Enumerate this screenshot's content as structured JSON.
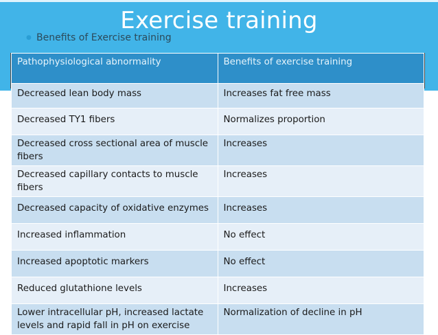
{
  "slide": {
    "title": "Exercise training",
    "subtitle": "Benefits of Exercise training",
    "bullet_icon": "circle-bullet"
  },
  "table": {
    "headers": [
      "Pathophysiological abnormality",
      "Benefits of exercise training"
    ],
    "rows": [
      [
        "Decreased lean body mass",
        "Increases fat free mass"
      ],
      [
        "Decreased TY1 fibers",
        "Normalizes proportion"
      ],
      [
        "Decreased cross sectional area of muscle fibers",
        "Increases"
      ],
      [
        "Decreased capillary contacts to muscle fibers",
        "Increases"
      ],
      [
        "Decreased capacity of oxidative enzymes",
        "Increases"
      ],
      [
        "Increased inflammation",
        "No effect"
      ],
      [
        "Increased apoptotic markers",
        "No effect"
      ],
      [
        "Reduced glutathione levels",
        "Increases"
      ],
      [
        "Lower intracellular pH, increased lactate levels and rapid fall in pH on exercise",
        "Normalization of decline in pH"
      ]
    ]
  },
  "colors": {
    "header_band": "#41b4e8",
    "table_header": "#2e8fc9",
    "row_odd": "#c8def0",
    "row_even": "#e6eff8"
  }
}
